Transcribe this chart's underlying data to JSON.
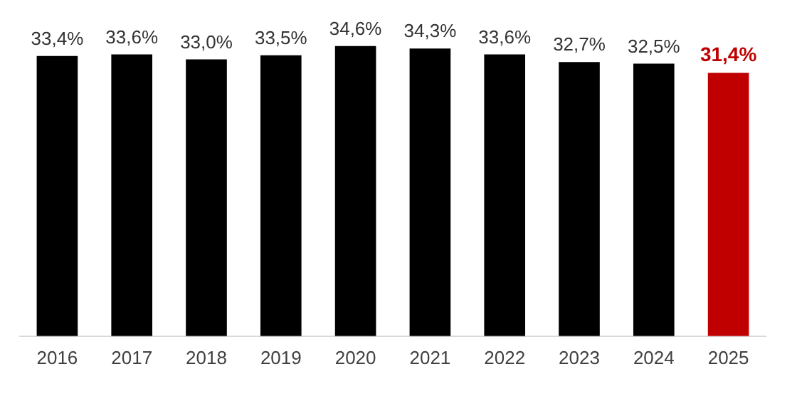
{
  "chart_data": {
    "type": "bar",
    "categories": [
      "2016",
      "2017",
      "2018",
      "2019",
      "2020",
      "2021",
      "2022",
      "2023",
      "2024",
      "2025"
    ],
    "values": [
      33.4,
      33.6,
      33.0,
      33.5,
      34.6,
      34.3,
      33.6,
      32.7,
      32.5,
      31.4
    ],
    "colors": [
      "#000000",
      "#000000",
      "#000000",
      "#000000",
      "#000000",
      "#000000",
      "#000000",
      "#000000",
      "#000000",
      "#c00000"
    ],
    "value_labels": [
      "33,4%",
      "33,6%",
      "33,0%",
      "33,5%",
      "34,6%",
      "34,3%",
      "33,6%",
      "32,7%",
      "32,5%",
      "31,4%"
    ],
    "grid": false,
    "legend": false,
    "tick_labels": "x"
  }
}
